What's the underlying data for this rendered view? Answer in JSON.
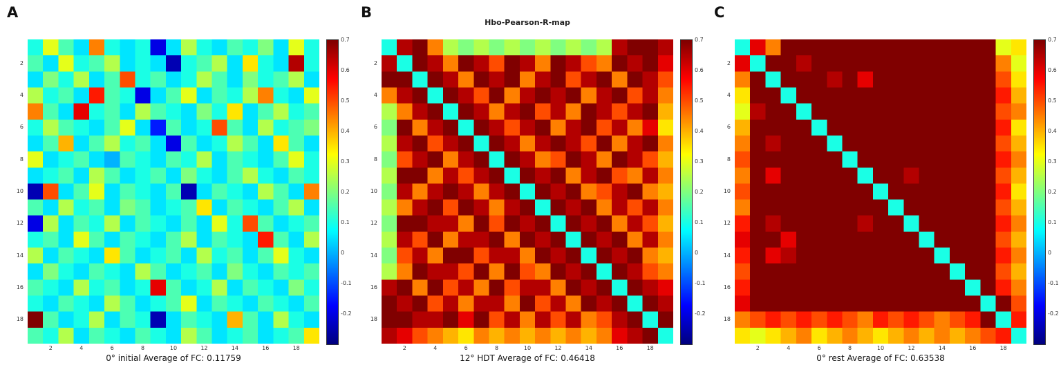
{
  "background": "#ffffff",
  "colormap": "jet",
  "value_range": {
    "vmin": -0.3,
    "vmax": 0.7
  },
  "axis_ticks": [
    2,
    4,
    6,
    8,
    10,
    12,
    14,
    16,
    18
  ],
  "colorbar_ticks": [
    0.7,
    0.6,
    0.5,
    0.4,
    0.3,
    0.2,
    0.1,
    0,
    -0.1,
    -0.2
  ],
  "chart_data": [
    {
      "type": "heatmap",
      "panel_label": "A",
      "title": "",
      "caption": "0° initial Average of FC: 0.11759",
      "average_fc": 0.11759,
      "grid_size": 19,
      "matrix": [
        [
          0.1,
          0.3,
          0.15,
          0.05,
          0.45,
          0.1,
          0.05,
          0.1,
          -0.2,
          0.05,
          0.25,
          0.1,
          0.05,
          0.15,
          0.1,
          0.2,
          0.05,
          0.3,
          0.1
        ],
        [
          0.15,
          0.05,
          0.3,
          0.1,
          0.15,
          0.25,
          0.05,
          0.1,
          0.05,
          -0.25,
          0.1,
          0.15,
          0.25,
          0.05,
          0.35,
          0.1,
          0.05,
          0.65,
          0.1
        ],
        [
          0.05,
          0.2,
          0.1,
          0.25,
          0.05,
          0.15,
          0.5,
          0.1,
          0.15,
          0.05,
          0.1,
          0.25,
          0.15,
          0.05,
          0.2,
          0.1,
          0.15,
          0.25,
          0.05
        ],
        [
          0.25,
          0.1,
          0.15,
          0.05,
          0.55,
          0.15,
          0.1,
          -0.2,
          0.05,
          0.15,
          0.3,
          0.05,
          0.15,
          0.1,
          0.25,
          0.45,
          0.1,
          0.05,
          0.3
        ],
        [
          0.45,
          0.15,
          0.05,
          0.6,
          0.1,
          0.15,
          0.05,
          0.25,
          0.15,
          0.1,
          0.05,
          0.2,
          0.1,
          0.35,
          0.05,
          0.15,
          0.25,
          0.1,
          0.15
        ],
        [
          0.1,
          0.25,
          0.15,
          0.1,
          0.05,
          0.15,
          0.3,
          0.05,
          -0.15,
          0.15,
          0.05,
          0.1,
          0.5,
          0.15,
          0.05,
          0.25,
          0.1,
          0.15,
          0.2
        ],
        [
          0.05,
          0.15,
          0.4,
          0.05,
          0.15,
          0.25,
          0.1,
          0.15,
          0.05,
          -0.2,
          0.15,
          0.05,
          0.1,
          0.25,
          0.15,
          0.05,
          0.35,
          0.15,
          0.05
        ],
        [
          0.3,
          0.05,
          0.1,
          0.15,
          0.05,
          0,
          0.15,
          0.1,
          0.05,
          0.15,
          0.1,
          0.25,
          0.05,
          0.15,
          0.1,
          0.05,
          0.15,
          0.3,
          0.1
        ],
        [
          0.05,
          0.1,
          0.15,
          0.05,
          0.25,
          0.15,
          0.05,
          0.1,
          0.15,
          0.05,
          0.2,
          0.1,
          0.05,
          0.15,
          0.25,
          0.1,
          0.05,
          0.15,
          0.1
        ],
        [
          -0.25,
          0.5,
          0.05,
          0.15,
          0.3,
          0.05,
          0.15,
          0.1,
          0.05,
          0.15,
          -0.25,
          0.05,
          0.15,
          0.1,
          0.05,
          0.25,
          0.15,
          0.05,
          0.45
        ],
        [
          0.15,
          0.05,
          0.25,
          0.1,
          0.15,
          0.05,
          0.2,
          0.15,
          0.05,
          0.1,
          0.15,
          0.35,
          0.05,
          0.15,
          0.1,
          0.05,
          0.15,
          0.25,
          0.05
        ],
        [
          -0.2,
          0.25,
          0.05,
          0.15,
          0.1,
          0.25,
          0.05,
          0.15,
          0.1,
          0.05,
          0.15,
          0.05,
          0.3,
          0.1,
          0.5,
          0.15,
          0.05,
          0.1,
          0.15
        ],
        [
          0.1,
          0.15,
          0.05,
          0.3,
          0.15,
          0.05,
          0.15,
          0.1,
          0.05,
          0.15,
          0.25,
          0.05,
          0.15,
          0.1,
          0.05,
          0.55,
          0.15,
          0.05,
          0.25
        ],
        [
          0.25,
          0.05,
          0.15,
          0.1,
          0.05,
          0.35,
          0.15,
          0.05,
          0.1,
          0.15,
          0.05,
          0.25,
          0.1,
          0.15,
          0.05,
          0.15,
          0.3,
          0.1,
          0.05
        ],
        [
          0.05,
          0.2,
          0.1,
          0.05,
          0.15,
          0.1,
          0.05,
          0.25,
          0.15,
          0.05,
          0.1,
          0.15,
          0.05,
          0.2,
          0.1,
          0.05,
          0.15,
          0.1,
          0.15
        ],
        [
          0.15,
          0.1,
          0.05,
          0.25,
          0.1,
          0.15,
          0.05,
          0.1,
          0.6,
          0.15,
          0.05,
          0.1,
          0.25,
          0.05,
          0.15,
          0.1,
          0.05,
          0.2,
          0.1
        ],
        [
          0.1,
          0.05,
          0.15,
          0.1,
          0.05,
          0.25,
          0.15,
          0.05,
          0.1,
          0.15,
          0.3,
          0.05,
          0.15,
          0.1,
          0.05,
          0.15,
          0.1,
          0.05,
          0.15
        ],
        [
          0.7,
          0.15,
          0.05,
          0.1,
          0.25,
          0.05,
          0.15,
          0.1,
          -0.25,
          0.05,
          0.15,
          0.1,
          0.05,
          0.4,
          0.15,
          0.05,
          0.25,
          0.1,
          0.05
        ],
        [
          0.15,
          0.1,
          0.25,
          0.05,
          0.15,
          0.1,
          0.05,
          0.15,
          0.1,
          0.05,
          0.25,
          0.15,
          0.05,
          0.1,
          0.15,
          0.05,
          0.1,
          0.15,
          0.35
        ]
      ]
    },
    {
      "type": "heatmap",
      "panel_label": "B",
      "title": "Hbo-Pearson-R-map",
      "caption": "12° HDT Average of FC: 0.46418",
      "average_fc": 0.46418,
      "grid_size": 19,
      "matrix": [
        [
          0.1,
          0.65,
          0.7,
          0.45,
          0.25,
          0.2,
          0.25,
          0.2,
          0.25,
          0.2,
          0.25,
          0.2,
          0.25,
          0.2,
          0.25,
          0.65,
          0.7,
          0.7,
          0.65
        ],
        [
          0.65,
          0.1,
          0.7,
          0.65,
          0.45,
          0.7,
          0.65,
          0.5,
          0.7,
          0.65,
          0.45,
          0.7,
          0.65,
          0.5,
          0.45,
          0.7,
          0.65,
          0.7,
          0.6
        ],
        [
          0.7,
          0.7,
          0.1,
          0.7,
          0.65,
          0.45,
          0.7,
          0.65,
          0.7,
          0.45,
          0.65,
          0.7,
          0.5,
          0.65,
          0.7,
          0.45,
          0.7,
          0.65,
          0.5
        ],
        [
          0.45,
          0.65,
          0.7,
          0.1,
          0.7,
          0.65,
          0.5,
          0.7,
          0.45,
          0.65,
          0.7,
          0.65,
          0.7,
          0.45,
          0.65,
          0.7,
          0.5,
          0.65,
          0.45
        ],
        [
          0.25,
          0.45,
          0.65,
          0.7,
          0.1,
          0.7,
          0.65,
          0.45,
          0.65,
          0.7,
          0.5,
          0.65,
          0.45,
          0.7,
          0.65,
          0.5,
          0.65,
          0.7,
          0.4
        ],
        [
          0.2,
          0.7,
          0.45,
          0.65,
          0.7,
          0.1,
          0.7,
          0.65,
          0.5,
          0.65,
          0.7,
          0.45,
          0.65,
          0.7,
          0.5,
          0.65,
          0.45,
          0.6,
          0.35
        ],
        [
          0.25,
          0.65,
          0.7,
          0.5,
          0.65,
          0.7,
          0.1,
          0.7,
          0.65,
          0.45,
          0.65,
          0.7,
          0.65,
          0.5,
          0.7,
          0.45,
          0.65,
          0.7,
          0.45
        ],
        [
          0.2,
          0.5,
          0.65,
          0.7,
          0.45,
          0.65,
          0.7,
          0.1,
          0.7,
          0.65,
          0.45,
          0.5,
          0.7,
          0.65,
          0.45,
          0.7,
          0.65,
          0.5,
          0.4
        ],
        [
          0.25,
          0.7,
          0.7,
          0.45,
          0.65,
          0.5,
          0.65,
          0.7,
          0.1,
          0.7,
          0.65,
          0.7,
          0.45,
          0.65,
          0.7,
          0.5,
          0.45,
          0.65,
          0.45
        ],
        [
          0.2,
          0.65,
          0.45,
          0.65,
          0.7,
          0.65,
          0.45,
          0.65,
          0.7,
          0.1,
          0.7,
          0.65,
          0.7,
          0.45,
          0.5,
          0.65,
          0.7,
          0.45,
          0.4
        ],
        [
          0.25,
          0.45,
          0.65,
          0.7,
          0.5,
          0.7,
          0.65,
          0.45,
          0.65,
          0.7,
          0.1,
          0.7,
          0.65,
          0.7,
          0.45,
          0.65,
          0.5,
          0.65,
          0.45
        ],
        [
          0.2,
          0.7,
          0.7,
          0.65,
          0.65,
          0.45,
          0.7,
          0.5,
          0.7,
          0.65,
          0.7,
          0.1,
          0.7,
          0.65,
          0.7,
          0.45,
          0.65,
          0.5,
          0.4
        ],
        [
          0.25,
          0.65,
          0.5,
          0.7,
          0.45,
          0.65,
          0.65,
          0.7,
          0.45,
          0.7,
          0.65,
          0.7,
          0.1,
          0.7,
          0.65,
          0.7,
          0.45,
          0.65,
          0.45
        ],
        [
          0.2,
          0.5,
          0.65,
          0.45,
          0.7,
          0.7,
          0.5,
          0.65,
          0.65,
          0.45,
          0.7,
          0.65,
          0.7,
          0.1,
          0.7,
          0.65,
          0.7,
          0.45,
          0.4
        ],
        [
          0.25,
          0.45,
          0.7,
          0.65,
          0.65,
          0.5,
          0.7,
          0.45,
          0.7,
          0.5,
          0.45,
          0.7,
          0.65,
          0.7,
          0.1,
          0.7,
          0.65,
          0.5,
          0.45
        ],
        [
          0.65,
          0.7,
          0.45,
          0.7,
          0.5,
          0.65,
          0.45,
          0.7,
          0.5,
          0.65,
          0.65,
          0.45,
          0.7,
          0.65,
          0.7,
          0.1,
          0.7,
          0.65,
          0.6
        ],
        [
          0.7,
          0.65,
          0.7,
          0.5,
          0.65,
          0.45,
          0.65,
          0.65,
          0.45,
          0.7,
          0.5,
          0.65,
          0.45,
          0.7,
          0.65,
          0.7,
          0.1,
          0.7,
          0.65
        ],
        [
          0.7,
          0.7,
          0.65,
          0.65,
          0.7,
          0.6,
          0.7,
          0.5,
          0.65,
          0.45,
          0.65,
          0.5,
          0.65,
          0.45,
          0.5,
          0.65,
          0.7,
          0.1,
          0.7
        ],
        [
          0.65,
          0.6,
          0.5,
          0.45,
          0.4,
          0.35,
          0.45,
          0.4,
          0.45,
          0.4,
          0.45,
          0.4,
          0.45,
          0.4,
          0.45,
          0.6,
          0.65,
          0.7,
          0.1
        ]
      ]
    },
    {
      "type": "heatmap",
      "panel_label": "C",
      "title": "",
      "caption": "0° rest Average of FC: 0.63538",
      "average_fc": 0.63538,
      "grid_size": 19,
      "matrix": [
        [
          0.1,
          0.6,
          0.45,
          0.7,
          0.7,
          0.7,
          0.7,
          0.7,
          0.7,
          0.7,
          0.7,
          0.7,
          0.7,
          0.7,
          0.7,
          0.7,
          0.7,
          0.3,
          0.35
        ],
        [
          0.6,
          0.1,
          0.7,
          0.7,
          0.65,
          0.7,
          0.7,
          0.7,
          0.7,
          0.7,
          0.7,
          0.7,
          0.7,
          0.7,
          0.7,
          0.7,
          0.7,
          0.45,
          0.3
        ],
        [
          0.45,
          0.7,
          0.1,
          0.7,
          0.7,
          0.7,
          0.65,
          0.7,
          0.6,
          0.7,
          0.7,
          0.7,
          0.7,
          0.7,
          0.7,
          0.7,
          0.7,
          0.5,
          0.35
        ],
        [
          0.35,
          0.7,
          0.7,
          0.1,
          0.7,
          0.7,
          0.7,
          0.7,
          0.7,
          0.7,
          0.7,
          0.7,
          0.7,
          0.7,
          0.7,
          0.7,
          0.7,
          0.55,
          0.4
        ],
        [
          0.3,
          0.65,
          0.7,
          0.7,
          0.1,
          0.7,
          0.7,
          0.7,
          0.7,
          0.7,
          0.7,
          0.7,
          0.7,
          0.7,
          0.7,
          0.7,
          0.7,
          0.5,
          0.45
        ],
        [
          0.4,
          0.7,
          0.7,
          0.7,
          0.7,
          0.1,
          0.7,
          0.7,
          0.7,
          0.7,
          0.7,
          0.7,
          0.7,
          0.7,
          0.7,
          0.7,
          0.7,
          0.55,
          0.35
        ],
        [
          0.45,
          0.7,
          0.65,
          0.7,
          0.7,
          0.7,
          0.1,
          0.7,
          0.7,
          0.7,
          0.7,
          0.7,
          0.7,
          0.7,
          0.7,
          0.7,
          0.7,
          0.5,
          0.4
        ],
        [
          0.5,
          0.7,
          0.7,
          0.7,
          0.7,
          0.7,
          0.7,
          0.1,
          0.7,
          0.7,
          0.7,
          0.7,
          0.7,
          0.7,
          0.7,
          0.7,
          0.7,
          0.55,
          0.45
        ],
        [
          0.45,
          0.7,
          0.6,
          0.7,
          0.7,
          0.7,
          0.7,
          0.7,
          0.1,
          0.7,
          0.7,
          0.65,
          0.7,
          0.7,
          0.7,
          0.7,
          0.7,
          0.5,
          0.4
        ],
        [
          0.5,
          0.7,
          0.7,
          0.7,
          0.7,
          0.7,
          0.7,
          0.7,
          0.7,
          0.1,
          0.7,
          0.7,
          0.7,
          0.7,
          0.7,
          0.7,
          0.7,
          0.55,
          0.35
        ],
        [
          0.45,
          0.7,
          0.7,
          0.7,
          0.7,
          0.7,
          0.7,
          0.7,
          0.7,
          0.7,
          0.1,
          0.7,
          0.7,
          0.7,
          0.7,
          0.7,
          0.7,
          0.5,
          0.4
        ],
        [
          0.55,
          0.7,
          0.65,
          0.7,
          0.7,
          0.7,
          0.7,
          0.7,
          0.65,
          0.7,
          0.7,
          0.1,
          0.7,
          0.7,
          0.7,
          0.7,
          0.7,
          0.55,
          0.45
        ],
        [
          0.6,
          0.7,
          0.7,
          0.6,
          0.7,
          0.7,
          0.7,
          0.7,
          0.7,
          0.7,
          0.7,
          0.7,
          0.1,
          0.7,
          0.7,
          0.7,
          0.7,
          0.5,
          0.4
        ],
        [
          0.55,
          0.7,
          0.6,
          0.65,
          0.7,
          0.7,
          0.7,
          0.7,
          0.7,
          0.7,
          0.7,
          0.7,
          0.7,
          0.1,
          0.7,
          0.7,
          0.7,
          0.55,
          0.45
        ],
        [
          0.5,
          0.7,
          0.7,
          0.7,
          0.7,
          0.7,
          0.7,
          0.7,
          0.7,
          0.7,
          0.7,
          0.7,
          0.7,
          0.7,
          0.1,
          0.7,
          0.7,
          0.5,
          0.4
        ],
        [
          0.55,
          0.7,
          0.7,
          0.7,
          0.7,
          0.7,
          0.7,
          0.7,
          0.7,
          0.7,
          0.7,
          0.7,
          0.7,
          0.7,
          0.7,
          0.1,
          0.7,
          0.55,
          0.45
        ],
        [
          0.6,
          0.7,
          0.7,
          0.7,
          0.7,
          0.7,
          0.7,
          0.7,
          0.7,
          0.7,
          0.7,
          0.7,
          0.7,
          0.7,
          0.7,
          0.7,
          0.1,
          0.7,
          0.5
        ],
        [
          0.45,
          0.5,
          0.55,
          0.5,
          0.55,
          0.5,
          0.55,
          0.5,
          0.45,
          0.55,
          0.5,
          0.55,
          0.5,
          0.45,
          0.5,
          0.55,
          0.7,
          0.1,
          0.55
        ],
        [
          0.35,
          0.3,
          0.35,
          0.4,
          0.45,
          0.35,
          0.4,
          0.45,
          0.4,
          0.35,
          0.4,
          0.45,
          0.4,
          0.45,
          0.4,
          0.45,
          0.5,
          0.55,
          0.1
        ]
      ]
    }
  ]
}
